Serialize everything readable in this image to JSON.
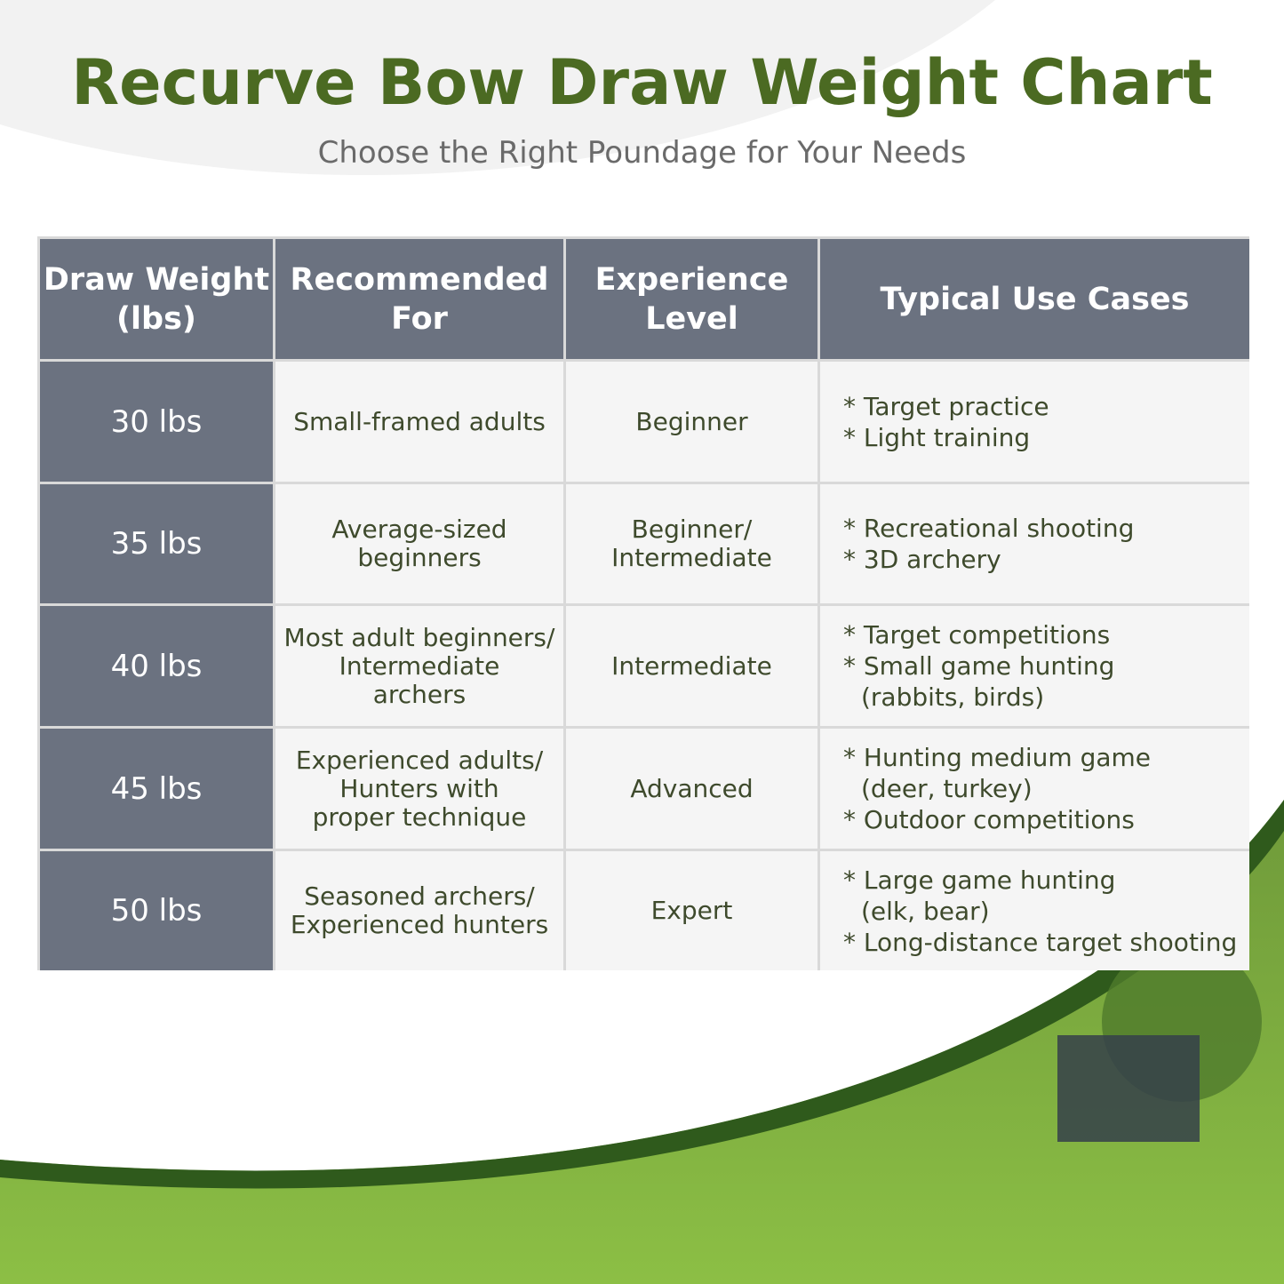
{
  "header": {
    "title": "Recurve Bow Draw Weight Chart",
    "subtitle": "Choose the Right Poundage for Your Needs"
  },
  "table": {
    "columns": [
      [
        "Draw Weight",
        "(lbs)"
      ],
      [
        "Recommended",
        "For"
      ],
      [
        "Experience",
        "Level"
      ],
      [
        "Typical Use Cases"
      ]
    ],
    "rows": [
      {
        "weight": "30 lbs",
        "recommended": [
          "Small-framed adults"
        ],
        "level": [
          "Beginner"
        ],
        "uses": [
          [
            "* Target practice"
          ],
          [
            "* Light training"
          ]
        ]
      },
      {
        "weight": "35 lbs",
        "recommended": [
          "Average-sized",
          "beginners"
        ],
        "level": [
          "Beginner/",
          "Intermediate"
        ],
        "uses": [
          [
            "* Recreational shooting"
          ],
          [
            "* 3D archery"
          ]
        ]
      },
      {
        "weight": "40 lbs",
        "recommended": [
          "Most adult beginners/",
          "Intermediate",
          "archers"
        ],
        "level": [
          "Intermediate"
        ],
        "uses": [
          [
            "* Target competitions"
          ],
          [
            "* Small game hunting",
            "(rabbits, birds)"
          ]
        ]
      },
      {
        "weight": "45 lbs",
        "recommended": [
          "Experienced adults/",
          "Hunters with",
          "proper technique"
        ],
        "level": [
          "Advanced"
        ],
        "uses": [
          [
            "* Hunting medium game",
            "(deer, turkey)"
          ],
          [
            "* Outdoor competitions"
          ]
        ]
      },
      {
        "weight": "50 lbs",
        "recommended": [
          "Seasoned archers/",
          "Experienced hunters"
        ],
        "level": [
          "Expert"
        ],
        "uses": [
          [
            "* Large game hunting",
            "(elk, bear)"
          ],
          [
            "* Long-distance target shooting"
          ]
        ]
      }
    ]
  }
}
